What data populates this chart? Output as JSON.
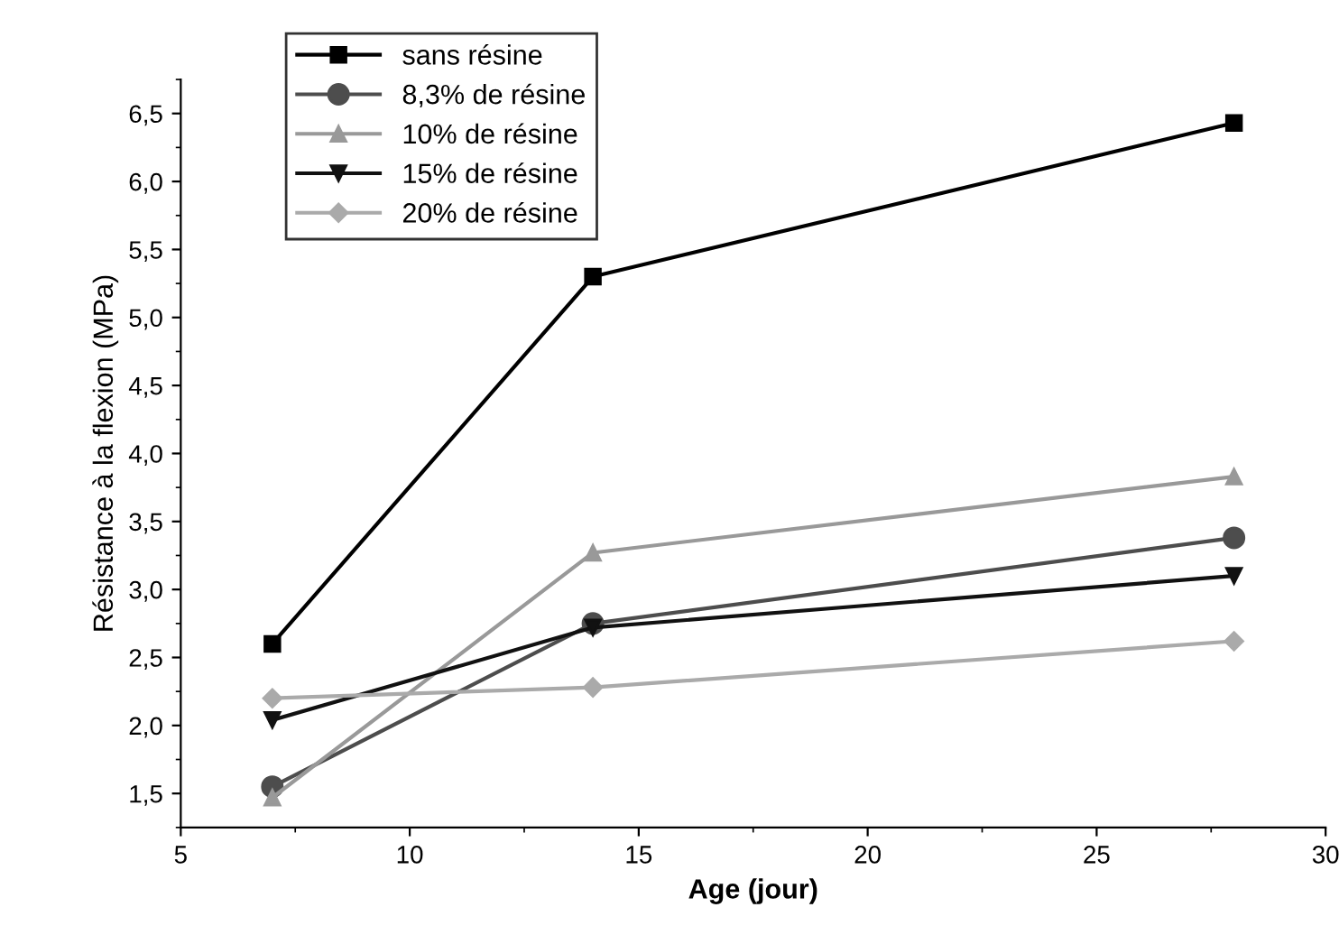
{
  "chart_data": {
    "type": "line",
    "xlabel": "Age (jour)",
    "ylabel": "Résistance à la flexion (MPa)",
    "x": [
      7,
      14,
      28
    ],
    "series": [
      {
        "name": "sans résine",
        "color": "#000000",
        "marker": "square",
        "values": [
          2.6,
          5.3,
          6.43
        ]
      },
      {
        "name": "8,3% de résine",
        "color": "#4d4d4d",
        "marker": "circle",
        "values": [
          1.55,
          2.75,
          3.38
        ]
      },
      {
        "name": "10% de résine",
        "color": "#999999",
        "marker": "triangle",
        "values": [
          1.47,
          3.27,
          3.83
        ]
      },
      {
        "name": "15% de résine",
        "color": "#111111",
        "marker": "triangle_down",
        "values": [
          2.04,
          2.72,
          3.1
        ]
      },
      {
        "name": "20% de résine",
        "color": "#aaaaaa",
        "marker": "diamond",
        "values": [
          2.2,
          2.28,
          2.62
        ]
      }
    ],
    "xlim": [
      5,
      30
    ],
    "xticks": [
      5,
      10,
      15,
      20,
      25,
      30
    ],
    "ylim": [
      1.25,
      6.75
    ],
    "yticks": [
      {
        "value": 1.5,
        "label": "1,5"
      },
      {
        "value": 2.0,
        "label": "2,0"
      },
      {
        "value": 2.5,
        "label": "2,5"
      },
      {
        "value": 3.0,
        "label": "3,0"
      },
      {
        "value": 3.5,
        "label": "3,5"
      },
      {
        "value": 4.0,
        "label": "4,0"
      },
      {
        "value": 4.5,
        "label": "4,5"
      },
      {
        "value": 5.0,
        "label": "5,0"
      },
      {
        "value": 5.5,
        "label": "5,5"
      },
      {
        "value": 6.0,
        "label": "6,0"
      },
      {
        "value": 6.5,
        "label": "6,5"
      }
    ],
    "grid": false,
    "legend": "top left",
    "line_style": "solid"
  }
}
